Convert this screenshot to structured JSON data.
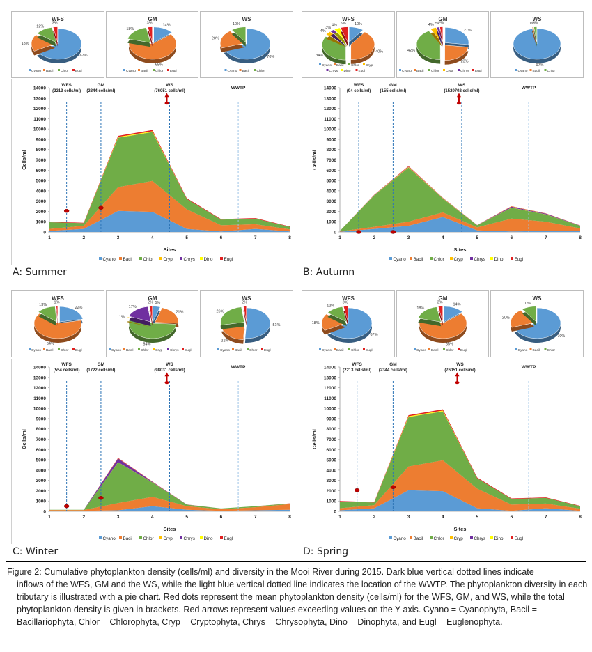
{
  "figure": {
    "caption_first_line": "Figure 2: Cumulative phytoplankton density (cells/ml) and diversity in the Mooi River during 2015. Dark blue vertical dotted lines indicate",
    "caption_rest": "inflows of the WFS, GM and the WS, while the light blue vertical dotted line indicates the location of the WWTP. The phytoplankton diversity in each tributary is illustrated with a pie chart. Red dots represent the mean phytoplankton density (cells/ml) for the WFS, GM, and WS, while the total phytoplankton density is given in brackets. Red arrows represent values exceeding values on the Y-axis. Cyano = Cyanophyta, Bacil = Bacillariophyta, Chlor = Chlorophyta, Cryp = Cryptophyta, Chrys = Chrysophyta, Dino = Dinophyta, and Eugl = Euglenophyta."
  },
  "colors": {
    "Cyano": "#5b9bd5",
    "Bacil": "#ed7d31",
    "Chlor": "#70ad47",
    "Cryp": "#ffc000",
    "Chrys": "#7030a0",
    "Dino": "#ffff00",
    "Eugl": "#e02020",
    "inflow_line": "#2e75b6",
    "wwtp_line": "#9dc3e6",
    "marker": "#c00000"
  },
  "chart_data": [
    {
      "panel": "A: Summer",
      "type": "area",
      "stacked": true,
      "xlabel": "Sites",
      "ylabel": "Cells/ml",
      "ylim": [
        0,
        14000
      ],
      "yticks": [
        0,
        1000,
        2000,
        3000,
        4000,
        5000,
        6000,
        7000,
        8000,
        9000,
        10000,
        11000,
        12000,
        13000,
        14000
      ],
      "x": [
        1,
        2,
        3,
        4,
        5,
        6,
        7,
        8
      ],
      "legend": [
        "Cyano",
        "Bacil",
        "Chlor",
        "Cryp",
        "Chrys",
        "Dino",
        "Eugl"
      ],
      "legend_position": "bottom",
      "series": [
        {
          "name": "Cyano",
          "values": [
            100,
            300,
            2050,
            1950,
            300,
            50,
            300,
            50
          ]
        },
        {
          "name": "Bacil",
          "values": [
            200,
            300,
            2300,
            3000,
            1900,
            600,
            450,
            200
          ]
        },
        {
          "name": "Chlor",
          "values": [
            650,
            250,
            4800,
            4750,
            1000,
            550,
            550,
            250
          ]
        },
        {
          "name": "Cryp",
          "values": [
            0,
            0,
            20,
            20,
            0,
            0,
            0,
            0
          ]
        },
        {
          "name": "Chrys",
          "values": [
            0,
            0,
            0,
            0,
            0,
            0,
            0,
            0
          ]
        },
        {
          "name": "Dino",
          "values": [
            0,
            0,
            60,
            60,
            0,
            0,
            0,
            0
          ]
        },
        {
          "name": "Eugl",
          "values": [
            50,
            50,
            100,
            120,
            80,
            50,
            50,
            30
          ]
        }
      ],
      "tributaries": [
        {
          "name": "WFS",
          "total_label": "(2213 cells/ml)",
          "x": 1.5,
          "mean": 2050,
          "exceeds": false
        },
        {
          "name": "GM",
          "total_label": "(2344 cells/ml)",
          "x": 2.5,
          "mean": 2350,
          "exceeds": false
        },
        {
          "name": "WS",
          "total_label": "(76051 cells/ml)",
          "x": 4.5,
          "mean": 14000,
          "exceeds": true
        }
      ],
      "wwtp": {
        "name": "WWTP",
        "x": 6.5
      },
      "pies": [
        {
          "title": "WFS",
          "slices": [
            {
              "name": "Cyano",
              "pct": 67
            },
            {
              "name": "Bacil",
              "pct": 18
            },
            {
              "name": "Chlor",
              "pct": 12
            },
            {
              "name": "Eugl",
              "pct": 3
            }
          ]
        },
        {
          "title": "GM",
          "slices": [
            {
              "name": "Cyano",
              "pct": 14
            },
            {
              "name": "Bacil",
              "pct": 65
            },
            {
              "name": "Chlor",
              "pct": 18
            },
            {
              "name": "Eugl",
              "pct": 3
            }
          ]
        },
        {
          "title": "WS",
          "slices": [
            {
              "name": "Cyano",
              "pct": 70
            },
            {
              "name": "Bacil",
              "pct": 20
            },
            {
              "name": "Chlor",
              "pct": 10
            }
          ]
        }
      ]
    },
    {
      "panel": "B: Autumn",
      "type": "area",
      "stacked": true,
      "xlabel": "Sites",
      "ylabel": "Cells/ml",
      "ylim": [
        0,
        14000
      ],
      "yticks": [
        0,
        1000,
        2000,
        3000,
        4000,
        5000,
        6000,
        7000,
        8000,
        9000,
        10000,
        11000,
        12000,
        13000,
        14000
      ],
      "x": [
        1,
        2,
        3,
        4,
        5,
        6,
        7,
        8
      ],
      "legend": [
        "Cyano",
        "Bacil",
        "Chlor",
        "Cryp",
        "Chrys",
        "Dino",
        "Eugl"
      ],
      "legend_position": "bottom",
      "series": [
        {
          "name": "Cyano",
          "values": [
            20,
            300,
            600,
            1450,
            150,
            50,
            100,
            100
          ]
        },
        {
          "name": "Bacil",
          "values": [
            30,
            200,
            400,
            450,
            300,
            1250,
            900,
            250
          ]
        },
        {
          "name": "Chlor",
          "values": [
            50,
            3050,
            5250,
            1350,
            200,
            1050,
            700,
            250
          ]
        },
        {
          "name": "Cryp",
          "values": [
            0,
            20,
            50,
            20,
            10,
            20,
            20,
            0
          ]
        },
        {
          "name": "Chrys",
          "values": [
            0,
            20,
            30,
            20,
            10,
            80,
            60,
            20
          ]
        },
        {
          "name": "Dino",
          "values": [
            0,
            10,
            20,
            10,
            0,
            20,
            10,
            0
          ]
        },
        {
          "name": "Eugl",
          "values": [
            0,
            20,
            50,
            20,
            10,
            30,
            20,
            10
          ]
        }
      ],
      "tributaries": [
        {
          "name": "WFS",
          "total_label": "(94 cells/ml)",
          "x": 1.55,
          "mean": 0,
          "exceeds": false
        },
        {
          "name": "GM",
          "total_label": "(155 cells/ml)",
          "x": 2.55,
          "mean": 0,
          "exceeds": false
        },
        {
          "name": "WS",
          "total_label": "(1520702 cells/ml)",
          "x": 4.55,
          "mean": 14000,
          "exceeds": true
        }
      ],
      "wwtp": {
        "name": "WWTP",
        "x": 6.5
      },
      "pies": [
        {
          "title": "WFS",
          "slices": [
            {
              "name": "Cyano",
              "pct": 10
            },
            {
              "name": "Bacil",
              "pct": 40
            },
            {
              "name": "Chlor",
              "pct": 34
            },
            {
              "name": "Cryp",
              "pct": 4
            },
            {
              "name": "Chrys",
              "pct": 3
            },
            {
              "name": "Dino",
              "pct": 4
            },
            {
              "name": "Eugl",
              "pct": 5
            }
          ]
        },
        {
          "title": "GM",
          "slices": [
            {
              "name": "Cyano",
              "pct": 27
            },
            {
              "name": "Bacil",
              "pct": 23
            },
            {
              "name": "Chlor",
              "pct": 42
            },
            {
              "name": "Cryp",
              "pct": 4
            },
            {
              "name": "Chrys",
              "pct": 2
            },
            {
              "name": "Eugl",
              "pct": 2
            }
          ]
        },
        {
          "title": "WS",
          "slices": [
            {
              "name": "Cyano",
              "pct": 97
            },
            {
              "name": "Bacil",
              "pct": 1
            },
            {
              "name": "Chlor",
              "pct": 2
            }
          ]
        }
      ]
    },
    {
      "panel": "C: Winter",
      "type": "area",
      "stacked": true,
      "xlabel": "Sites",
      "ylabel": "Cells/ml",
      "ylim": [
        0,
        14000
      ],
      "yticks": [
        0,
        1000,
        2000,
        3000,
        4000,
        5000,
        6000,
        7000,
        8000,
        9000,
        10000,
        11000,
        12000,
        13000,
        14000
      ],
      "x": [
        1,
        2,
        3,
        4,
        5,
        6,
        7,
        8
      ],
      "legend": [
        "Cyano",
        "Bacil",
        "Chlor",
        "Cryp",
        "Chrys",
        "Dino",
        "Eugl"
      ],
      "legend_position": "bottom",
      "series": [
        {
          "name": "Cyano",
          "values": [
            50,
            50,
            100,
            500,
            150,
            50,
            100,
            150
          ]
        },
        {
          "name": "Bacil",
          "values": [
            80,
            80,
            700,
            900,
            350,
            150,
            300,
            550
          ]
        },
        {
          "name": "Chlor",
          "values": [
            20,
            20,
            3950,
            1400,
            150,
            80,
            100,
            50
          ]
        },
        {
          "name": "Cryp",
          "values": [
            0,
            0,
            20,
            10,
            0,
            0,
            0,
            0
          ]
        },
        {
          "name": "Chrys",
          "values": [
            0,
            0,
            350,
            50,
            10,
            0,
            0,
            0
          ]
        },
        {
          "name": "Dino",
          "values": [
            0,
            0,
            10,
            0,
            0,
            0,
            0,
            0
          ]
        },
        {
          "name": "Eugl",
          "values": [
            0,
            0,
            50,
            20,
            10,
            0,
            0,
            20
          ]
        }
      ],
      "tributaries": [
        {
          "name": "WFS",
          "total_label": "(554 cells/ml)",
          "x": 1.5,
          "mean": 500,
          "exceeds": false
        },
        {
          "name": "GM",
          "total_label": "(1722 cells/ml)",
          "x": 2.5,
          "mean": 1300,
          "exceeds": false
        },
        {
          "name": "WS",
          "total_label": "(98031 cells/ml)",
          "x": 4.5,
          "mean": 14000,
          "exceeds": true
        }
      ],
      "wwtp": {
        "name": "WWTP",
        "x": 6.5
      },
      "pies": [
        {
          "title": "WFS",
          "slices": [
            {
              "name": "Cyano",
              "pct": 22
            },
            {
              "name": "Bacil",
              "pct": 64
            },
            {
              "name": "Chlor",
              "pct": 13
            },
            {
              "name": "Eugl",
              "pct": 1
            }
          ]
        },
        {
          "title": "GM",
          "slices": [
            {
              "name": "Cyano",
              "pct": 5
            },
            {
              "name": "Bacil",
              "pct": 21
            },
            {
              "name": "Chlor",
              "pct": 54
            },
            {
              "name": "Cryp",
              "pct": 1
            },
            {
              "name": "Chrys",
              "pct": 17
            },
            {
              "name": "Eugl",
              "pct": 2
            }
          ]
        },
        {
          "title": "WS",
          "slices": [
            {
              "name": "Cyano",
              "pct": 51
            },
            {
              "name": "Bacil",
              "pct": 21
            },
            {
              "name": "Chlor",
              "pct": 26
            },
            {
              "name": "Eugl",
              "pct": 2
            }
          ]
        }
      ]
    },
    {
      "panel": "D: Spring",
      "type": "area",
      "stacked": true,
      "xlabel": "Sites",
      "ylabel": "Cells/ml",
      "ylim": [
        0,
        14000
      ],
      "yticks": [
        0,
        1000,
        2000,
        3000,
        4000,
        5000,
        6000,
        7000,
        8000,
        9000,
        10000,
        11000,
        12000,
        13000,
        14000
      ],
      "x": [
        1,
        2,
        3,
        4,
        5,
        6,
        7,
        8
      ],
      "legend": [
        "Cyano",
        "Bacil",
        "Chlor",
        "Cryp",
        "Chrys",
        "Dino",
        "Eugl"
      ],
      "legend_position": "bottom",
      "series": [
        {
          "name": "Cyano",
          "values": [
            100,
            300,
            2050,
            1950,
            300,
            50,
            300,
            50
          ]
        },
        {
          "name": "Bacil",
          "values": [
            200,
            300,
            2300,
            3000,
            1900,
            600,
            450,
            200
          ]
        },
        {
          "name": "Chlor",
          "values": [
            650,
            250,
            4800,
            4750,
            1000,
            550,
            550,
            250
          ]
        },
        {
          "name": "Cryp",
          "values": [
            0,
            0,
            20,
            20,
            0,
            0,
            0,
            0
          ]
        },
        {
          "name": "Chrys",
          "values": [
            0,
            0,
            0,
            0,
            0,
            0,
            0,
            0
          ]
        },
        {
          "name": "Dino",
          "values": [
            0,
            0,
            60,
            60,
            0,
            0,
            0,
            0
          ]
        },
        {
          "name": "Eugl",
          "values": [
            50,
            50,
            100,
            120,
            80,
            50,
            50,
            30
          ]
        }
      ],
      "tributaries": [
        {
          "name": "WFS",
          "total_label": "(2213 cells/ml)",
          "x": 1.5,
          "mean": 2050,
          "exceeds": false
        },
        {
          "name": "GM",
          "total_label": "(2344 cells/ml)",
          "x": 2.55,
          "mean": 2350,
          "exceeds": false
        },
        {
          "name": "WS",
          "total_label": "(76051 cells/ml)",
          "x": 4.5,
          "mean": 14000,
          "exceeds": true
        }
      ],
      "wwtp": {
        "name": "WWTP",
        "x": 6.5
      },
      "pies": [
        {
          "title": "WFS",
          "slices": [
            {
              "name": "Cyano",
              "pct": 67
            },
            {
              "name": "Bacil",
              "pct": 18
            },
            {
              "name": "Chlor",
              "pct": 12
            },
            {
              "name": "Eugl",
              "pct": 3
            }
          ]
        },
        {
          "title": "GM",
          "slices": [
            {
              "name": "Cyano",
              "pct": 14
            },
            {
              "name": "Bacil",
              "pct": 65
            },
            {
              "name": "Chlor",
              "pct": 18
            },
            {
              "name": "Eugl",
              "pct": 3
            }
          ]
        },
        {
          "title": "WS",
          "slices": [
            {
              "name": "Cyano",
              "pct": 70
            },
            {
              "name": "Bacil",
              "pct": 20
            },
            {
              "name": "Chlor",
              "pct": 10
            }
          ]
        }
      ]
    }
  ]
}
